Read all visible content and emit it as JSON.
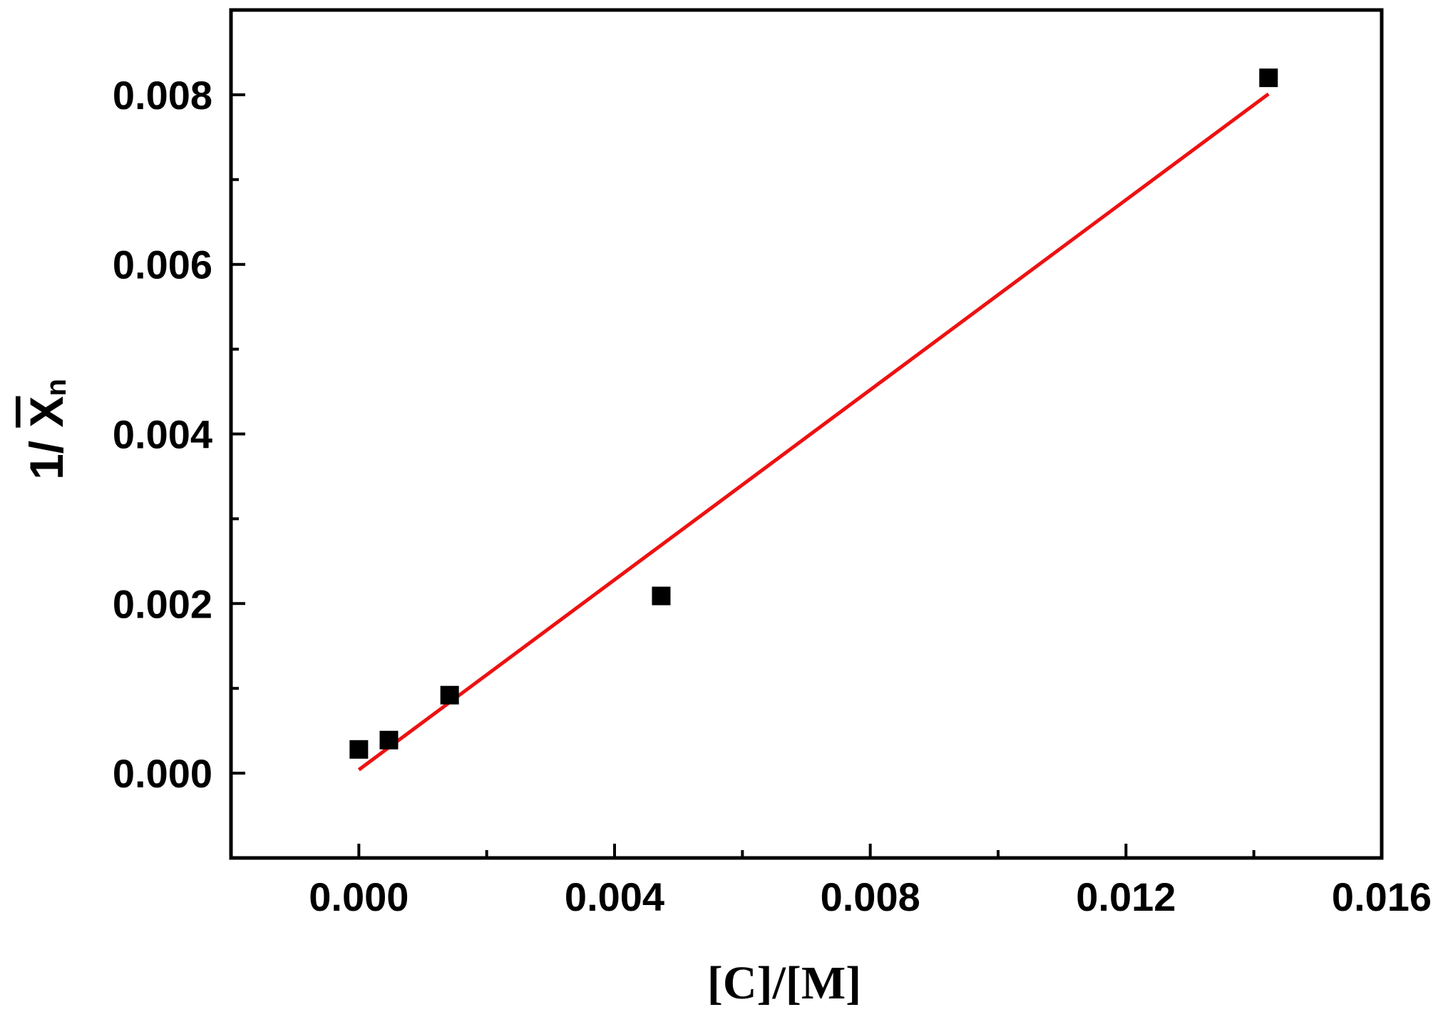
{
  "chart_data": {
    "type": "scatter",
    "title": "",
    "xlabel": "[C]/[M]",
    "ylabel": {
      "prefix": "1/ ",
      "main": "X",
      "subscript": "n",
      "overline": true
    },
    "xlim": [
      -0.002,
      0.016
    ],
    "ylim": [
      -0.001,
      0.009
    ],
    "x_ticks": [
      0.0,
      0.004,
      0.008,
      0.012,
      0.016
    ],
    "x_tick_labels": [
      "0.000",
      "0.004",
      "0.008",
      "0.012",
      "0.016"
    ],
    "x_minor_ticks": [
      0.002,
      0.006,
      0.01,
      0.014
    ],
    "y_ticks": [
      0.0,
      0.002,
      0.004,
      0.006,
      0.008
    ],
    "y_tick_labels": [
      "0.000",
      "0.002",
      "0.004",
      "0.006",
      "0.008"
    ],
    "y_minor_ticks": [
      0.001,
      0.003,
      0.005,
      0.007
    ],
    "grid": false,
    "legend": "none",
    "series": [
      {
        "type": "scatter",
        "marker": "square",
        "color": "#000000",
        "points": [
          {
            "x": 0.0,
            "y": 0.00028
          },
          {
            "x": 0.00047,
            "y": 0.00039
          },
          {
            "x": 0.00142,
            "y": 0.00092
          },
          {
            "x": 0.00473,
            "y": 0.00209
          },
          {
            "x": 0.01423,
            "y": 0.0082
          }
        ]
      },
      {
        "type": "line",
        "color": "#ee1111",
        "points": [
          {
            "x": 0.0,
            "y": 4e-05
          },
          {
            "x": 0.01423,
            "y": 0.00801
          }
        ]
      }
    ]
  }
}
